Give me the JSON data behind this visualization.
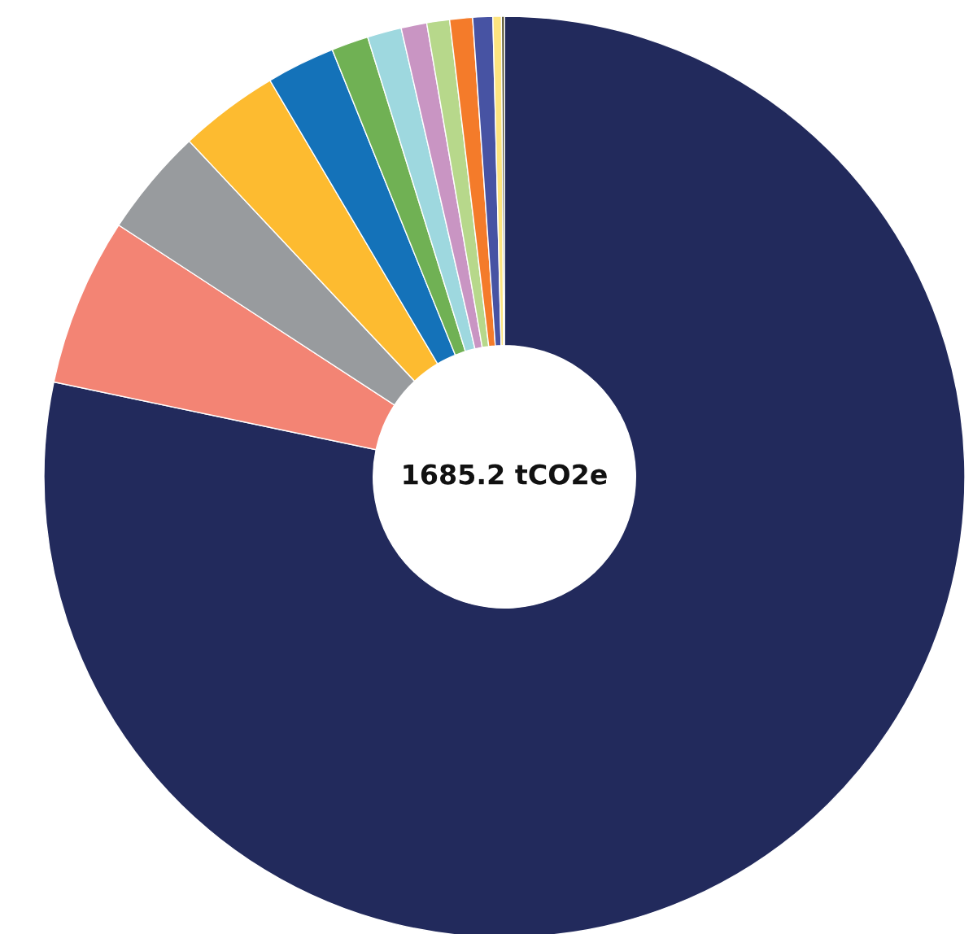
{
  "chart_data": {
    "type": "donut",
    "categories": [
      null,
      null,
      null,
      null,
      null,
      null,
      null,
      null,
      null,
      null,
      null,
      null,
      null
    ],
    "values": [
      78.3,
      5.9,
      3.8,
      3.5,
      2.4,
      1.3,
      1.2,
      0.9,
      0.8,
      0.8,
      0.7,
      0.3,
      0.1
    ],
    "colors": [
      "#222a5c",
      "#f38474",
      "#989b9e",
      "#fdbb30",
      "#1472b9",
      "#70b154",
      "#9ed8df",
      "#c995c3",
      "#b7d88b",
      "#f47b2a",
      "#4753a3",
      "#fde47f",
      "#4f4a24"
    ],
    "annotations": [
      "1685.2 tCO2e"
    ]
  }
}
